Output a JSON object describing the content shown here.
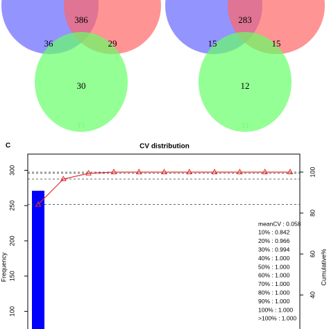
{
  "chart_data": [
    {
      "type": "venn",
      "set_label": "T3",
      "colors": [
        "#6666ff",
        "#ff6666",
        "#66ff66"
      ],
      "values": [
        386,
        36,
        29,
        30
      ]
    },
    {
      "type": "venn",
      "set_label": "T3",
      "colors": [
        "#6666ff",
        "#ff6666",
        "#66ff66"
      ],
      "values": [
        283,
        15,
        15,
        12
      ]
    },
    {
      "type": "bar",
      "panel": "C",
      "title": "CV distribution",
      "ylabel": "Frequency",
      "y2label": "Cumulative%",
      "ylim": [
        75,
        323
      ],
      "yticks": [
        100,
        150,
        200,
        250,
        300
      ],
      "y2lim": [
        23.4,
        108.8
      ],
      "y2ticks": [
        40,
        60,
        80,
        100
      ],
      "series": [
        {
          "name": "Frequency",
          "color": "#0000ff",
          "values": [
            271,
            null,
            null,
            null,
            null,
            null,
            null,
            null,
            null,
            null,
            null
          ]
        },
        {
          "name": "Cumulative%",
          "color": "#e03030",
          "axis": "y2",
          "values": [
            84.2,
            96.6,
            99.4,
            100,
            100,
            100,
            100,
            100,
            100,
            100,
            100
          ]
        }
      ],
      "annotation": [
        "meanCV : 0.058",
        "10% : 0.842",
        "20% : 0.966",
        "30% : 0.994",
        "40% : 1.000",
        "50% : 1.000",
        "60% : 1.000",
        "70% : 1.000",
        "80% : 1.000",
        "90% : 1.000",
        "100% : 1.000",
        ">100% : 1.000"
      ]
    }
  ]
}
